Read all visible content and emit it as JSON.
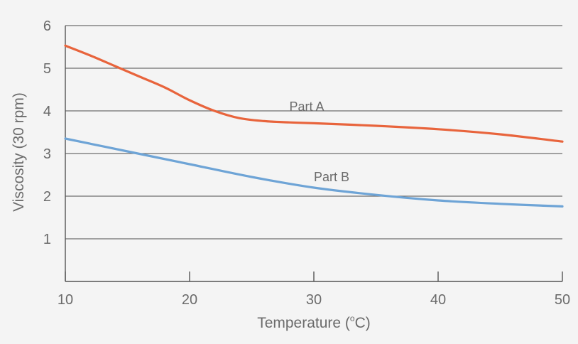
{
  "chart_data": {
    "type": "line",
    "title": "",
    "xlabel": "Temperature (°C)",
    "xlabel_parts": {
      "main": "Temperature (",
      "degree": "o",
      "unit": "C)"
    },
    "ylabel": "Viscosity (30 rpm)",
    "xlim": [
      10,
      50
    ],
    "ylim": [
      0,
      6
    ],
    "x_ticks": [
      10,
      20,
      30,
      40,
      50
    ],
    "y_ticks": [
      1,
      2,
      3,
      4,
      5,
      6
    ],
    "grid": "horizontal",
    "legend": "inline labels",
    "series": [
      {
        "name": "Part A",
        "color": "#e8643c",
        "x": [
          10,
          12,
          14,
          16,
          18,
          20,
          22,
          24,
          26,
          28,
          30,
          35,
          40,
          45,
          50
        ],
        "y": [
          5.53,
          5.3,
          5.05,
          4.8,
          4.55,
          4.25,
          4.0,
          3.83,
          3.76,
          3.73,
          3.71,
          3.65,
          3.57,
          3.45,
          3.28
        ]
      },
      {
        "name": "Part B",
        "color": "#6ea4d6",
        "x": [
          10,
          15,
          20,
          25,
          30,
          35,
          40,
          45,
          50
        ],
        "y": [
          3.35,
          3.05,
          2.75,
          2.45,
          2.2,
          2.03,
          1.9,
          1.82,
          1.76
        ]
      }
    ]
  }
}
